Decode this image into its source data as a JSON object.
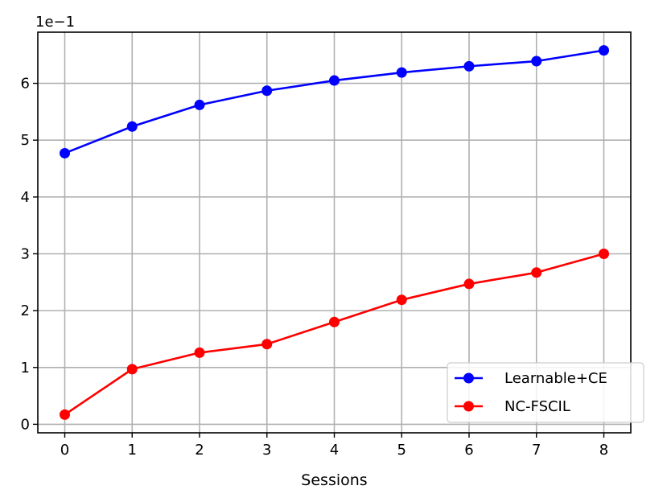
{
  "chart_data": {
    "type": "line",
    "title": "",
    "xlabel": "Sessions",
    "ylabel": "",
    "y_offset_text": "1e−1",
    "x": [
      0,
      1,
      2,
      3,
      4,
      5,
      6,
      7,
      8
    ],
    "xlim": [
      -0.4,
      8.4
    ],
    "ylim": [
      -0.15,
      6.9
    ],
    "y_ticks": [
      0,
      1,
      2,
      3,
      4,
      5,
      6
    ],
    "x_ticks": [
      0,
      1,
      2,
      3,
      4,
      5,
      6,
      7,
      8
    ],
    "grid": true,
    "legend_position": "lower-right",
    "series": [
      {
        "name": "Learnable+CE",
        "color": "#0000ff",
        "marker": "circle",
        "values": [
          4.77,
          5.24,
          5.62,
          5.87,
          6.05,
          6.19,
          6.3,
          6.39,
          6.58
        ]
      },
      {
        "name": "NC-FSCIL",
        "color": "#ff0000",
        "marker": "circle",
        "values": [
          0.17,
          0.97,
          1.26,
          1.41,
          1.8,
          2.19,
          2.47,
          2.67,
          3.0
        ]
      }
    ]
  }
}
